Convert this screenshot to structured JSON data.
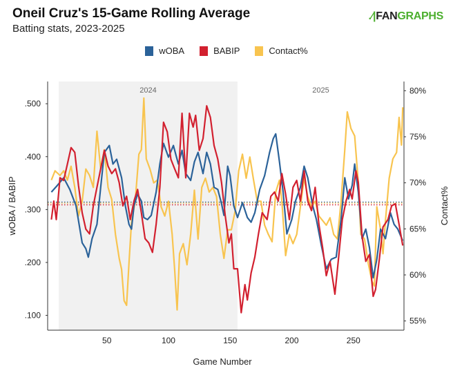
{
  "header": {
    "title": "Oneil Cruz's 15-Game Rolling Average",
    "subtitle": "Batting stats, 2023-2025",
    "logo_text_dark": "FAN",
    "logo_text_green": "GRAPHS"
  },
  "chart_data": {
    "type": "line",
    "title": "Oneil Cruz's 15-Game Rolling Average",
    "subtitle": "Batting stats, 2023-2025",
    "xlabel": "Game Number",
    "ylabel_left": "wOBA / BABIP",
    "ylabel_right": "Contact%",
    "xlim": [
      2,
      291
    ],
    "ylim_left": [
      0.072,
      0.542
    ],
    "ylim_right": [
      54,
      81
    ],
    "x_ticks": [
      "50",
      "100",
      "150",
      "200",
      "250"
    ],
    "x_tick_values": [
      50,
      100,
      150,
      200,
      250
    ],
    "y_left_ticks": [
      ".100",
      ".200",
      ".300",
      ".400",
      ".500"
    ],
    "y_left_tick_values": [
      0.1,
      0.2,
      0.3,
      0.4,
      0.5
    ],
    "y_right_ticks": [
      "55%",
      "60%",
      "65%",
      "70%",
      "75%",
      "80%"
    ],
    "y_right_tick_values": [
      55,
      60,
      65,
      70,
      75,
      80
    ],
    "legend_position": "top-center",
    "grid": false,
    "season_bands": [
      {
        "label": "2024",
        "start": 11,
        "end": 156,
        "shaded": true
      },
      {
        "label": "2025",
        "start": 156,
        "end": 291,
        "shaded": false
      }
    ],
    "series": [
      {
        "name": "wOBA",
        "axis": "left",
        "color": "#2b6299",
        "mean": 0.314,
        "points": [
          [
            5,
            0.333
          ],
          [
            10,
            0.346
          ],
          [
            15,
            0.36
          ],
          [
            20,
            0.338
          ],
          [
            25,
            0.307
          ],
          [
            30,
            0.237
          ],
          [
            33,
            0.226
          ],
          [
            35,
            0.21
          ],
          [
            38,
            0.245
          ],
          [
            42,
            0.272
          ],
          [
            45,
            0.342
          ],
          [
            48,
            0.408
          ],
          [
            52,
            0.421
          ],
          [
            55,
            0.386
          ],
          [
            58,
            0.395
          ],
          [
            62,
            0.36
          ],
          [
            65,
            0.307
          ],
          [
            68,
            0.272
          ],
          [
            70,
            0.263
          ],
          [
            72,
            0.307
          ],
          [
            75,
            0.329
          ],
          [
            78,
            0.316
          ],
          [
            80,
            0.285
          ],
          [
            83,
            0.281
          ],
          [
            86,
            0.289
          ],
          [
            90,
            0.333
          ],
          [
            93,
            0.386
          ],
          [
            96,
            0.425
          ],
          [
            100,
            0.399
          ],
          [
            104,
            0.421
          ],
          [
            108,
            0.386
          ],
          [
            111,
            0.412
          ],
          [
            114,
            0.368
          ],
          [
            118,
            0.355
          ],
          [
            121,
            0.39
          ],
          [
            124,
            0.408
          ],
          [
            128,
            0.368
          ],
          [
            131,
            0.408
          ],
          [
            134,
            0.386
          ],
          [
            137,
            0.342
          ],
          [
            140,
            0.338
          ],
          [
            143,
            0.311
          ],
          [
            145,
            0.289
          ],
          [
            148,
            0.382
          ],
          [
            150,
            0.364
          ],
          [
            153,
            0.307
          ],
          [
            156,
            0.285
          ],
          [
            160,
            0.313
          ],
          [
            164,
            0.285
          ],
          [
            167,
            0.276
          ],
          [
            170,
            0.294
          ],
          [
            174,
            0.338
          ],
          [
            178,
            0.364
          ],
          [
            182,
            0.408
          ],
          [
            185,
            0.434
          ],
          [
            187,
            0.443
          ],
          [
            190,
            0.39
          ],
          [
            193,
            0.333
          ],
          [
            196,
            0.254
          ],
          [
            200,
            0.281
          ],
          [
            203,
            0.316
          ],
          [
            207,
            0.342
          ],
          [
            210,
            0.382
          ],
          [
            213,
            0.36
          ],
          [
            217,
            0.307
          ],
          [
            220,
            0.281
          ],
          [
            224,
            0.232
          ],
          [
            228,
            0.188
          ],
          [
            232,
            0.206
          ],
          [
            236,
            0.21
          ],
          [
            240,
            0.281
          ],
          [
            243,
            0.36
          ],
          [
            246,
            0.32
          ],
          [
            249,
            0.346
          ],
          [
            251,
            0.386
          ],
          [
            254,
            0.333
          ],
          [
            257,
            0.245
          ],
          [
            260,
            0.263
          ],
          [
            263,
            0.228
          ],
          [
            266,
            0.171
          ],
          [
            269,
            0.206
          ],
          [
            272,
            0.263
          ],
          [
            276,
            0.245
          ],
          [
            280,
            0.294
          ],
          [
            283,
            0.272
          ],
          [
            286,
            0.263
          ],
          [
            290,
            0.241
          ]
        ]
      },
      {
        "name": "BABIP",
        "axis": "left",
        "color": "#d2202f",
        "mean": 0.309,
        "points": [
          [
            5,
            0.281
          ],
          [
            7,
            0.316
          ],
          [
            9,
            0.281
          ],
          [
            12,
            0.36
          ],
          [
            15,
            0.355
          ],
          [
            18,
            0.386
          ],
          [
            21,
            0.417
          ],
          [
            24,
            0.408
          ],
          [
            27,
            0.346
          ],
          [
            30,
            0.294
          ],
          [
            33,
            0.263
          ],
          [
            36,
            0.254
          ],
          [
            39,
            0.307
          ],
          [
            42,
            0.342
          ],
          [
            45,
            0.377
          ],
          [
            48,
            0.412
          ],
          [
            51,
            0.382
          ],
          [
            54,
            0.368
          ],
          [
            57,
            0.377
          ],
          [
            60,
            0.351
          ],
          [
            63,
            0.307
          ],
          [
            66,
            0.325
          ],
          [
            69,
            0.281
          ],
          [
            72,
            0.316
          ],
          [
            75,
            0.338
          ],
          [
            78,
            0.294
          ],
          [
            81,
            0.245
          ],
          [
            84,
            0.237
          ],
          [
            87,
            0.219
          ],
          [
            90,
            0.272
          ],
          [
            93,
            0.342
          ],
          [
            96,
            0.465
          ],
          [
            99,
            0.447
          ],
          [
            102,
            0.395
          ],
          [
            105,
            0.377
          ],
          [
            108,
            0.36
          ],
          [
            111,
            0.482
          ],
          [
            114,
            0.36
          ],
          [
            117,
            0.482
          ],
          [
            120,
            0.456
          ],
          [
            122,
            0.478
          ],
          [
            125,
            0.412
          ],
          [
            128,
            0.434
          ],
          [
            131,
            0.496
          ],
          [
            134,
            0.474
          ],
          [
            137,
            0.421
          ],
          [
            140,
            0.395
          ],
          [
            143,
            0.351
          ],
          [
            146,
            0.289
          ],
          [
            149,
            0.237
          ],
          [
            151,
            0.254
          ],
          [
            153,
            0.188
          ],
          [
            156,
            0.188
          ],
          [
            159,
            0.105
          ],
          [
            162,
            0.158
          ],
          [
            164,
            0.129
          ],
          [
            167,
            0.18
          ],
          [
            170,
            0.21
          ],
          [
            173,
            0.254
          ],
          [
            176,
            0.294
          ],
          [
            180,
            0.281
          ],
          [
            183,
            0.325
          ],
          [
            186,
            0.333
          ],
          [
            189,
            0.316
          ],
          [
            192,
            0.368
          ],
          [
            195,
            0.329
          ],
          [
            198,
            0.281
          ],
          [
            201,
            0.342
          ],
          [
            204,
            0.355
          ],
          [
            207,
            0.316
          ],
          [
            210,
            0.373
          ],
          [
            213,
            0.316
          ],
          [
            216,
            0.298
          ],
          [
            219,
            0.342
          ],
          [
            222,
            0.272
          ],
          [
            225,
            0.228
          ],
          [
            228,
            0.175
          ],
          [
            231,
            0.202
          ],
          [
            235,
            0.14
          ],
          [
            238,
            0.21
          ],
          [
            241,
            0.281
          ],
          [
            244,
            0.316
          ],
          [
            247,
            0.338
          ],
          [
            249,
            0.32
          ],
          [
            252,
            0.373
          ],
          [
            254,
            0.351
          ],
          [
            257,
            0.25
          ],
          [
            260,
            0.202
          ],
          [
            263,
            0.215
          ],
          [
            266,
            0.136
          ],
          [
            268,
            0.149
          ],
          [
            271,
            0.206
          ],
          [
            274,
            0.267
          ],
          [
            278,
            0.281
          ],
          [
            281,
            0.307
          ],
          [
            284,
            0.311
          ],
          [
            287,
            0.272
          ],
          [
            290,
            0.232
          ]
        ]
      },
      {
        "name": "Contact%",
        "axis": "right",
        "color": "#f8c44f",
        "mean": 67.8,
        "points": [
          [
            5,
            70.3
          ],
          [
            8,
            71.3
          ],
          [
            12,
            70.8
          ],
          [
            15,
            71.3
          ],
          [
            18,
            70.3
          ],
          [
            21,
            71.8
          ],
          [
            24,
            69.5
          ],
          [
            27,
            66.4
          ],
          [
            30,
            68.0
          ],
          [
            33,
            71.5
          ],
          [
            36,
            70.8
          ],
          [
            39,
            69.5
          ],
          [
            42,
            75.6
          ],
          [
            45,
            71.5
          ],
          [
            48,
            73.6
          ],
          [
            51,
            69.5
          ],
          [
            54,
            68.2
          ],
          [
            57,
            64.4
          ],
          [
            60,
            61.8
          ],
          [
            62,
            60.6
          ],
          [
            64,
            57.2
          ],
          [
            66,
            56.7
          ],
          [
            68,
            61.3
          ],
          [
            70,
            65.7
          ],
          [
            73,
            68.0
          ],
          [
            76,
            73.1
          ],
          [
            78,
            73.6
          ],
          [
            80,
            79.2
          ],
          [
            82,
            72.6
          ],
          [
            85,
            71.5
          ],
          [
            88,
            70.0
          ],
          [
            91,
            70.3
          ],
          [
            94,
            67.4
          ],
          [
            97,
            66.4
          ],
          [
            100,
            68.0
          ],
          [
            103,
            64.4
          ],
          [
            105,
            60.6
          ],
          [
            107,
            56.2
          ],
          [
            109,
            62.3
          ],
          [
            112,
            63.4
          ],
          [
            115,
            61.1
          ],
          [
            118,
            64.4
          ],
          [
            121,
            69.2
          ],
          [
            124,
            63.9
          ],
          [
            127,
            69.5
          ],
          [
            130,
            70.5
          ],
          [
            133,
            69.0
          ],
          [
            136,
            69.5
          ],
          [
            139,
            68.5
          ],
          [
            142,
            64.4
          ],
          [
            145,
            61.8
          ],
          [
            148,
            64.9
          ],
          [
            151,
            64.9
          ],
          [
            154,
            66.9
          ],
          [
            157,
            71.3
          ],
          [
            160,
            73.1
          ],
          [
            163,
            70.5
          ],
          [
            166,
            72.8
          ],
          [
            169,
            70.3
          ],
          [
            172,
            68.0
          ],
          [
            175,
            68.0
          ],
          [
            178,
            65.4
          ],
          [
            181,
            64.4
          ],
          [
            184,
            63.6
          ],
          [
            187,
            69.0
          ],
          [
            190,
            70.3
          ],
          [
            192,
            68.0
          ],
          [
            195,
            62.1
          ],
          [
            198,
            64.4
          ],
          [
            201,
            63.4
          ],
          [
            204,
            64.4
          ],
          [
            207,
            67.4
          ],
          [
            210,
            70.5
          ],
          [
            213,
            68.5
          ],
          [
            216,
            67.4
          ],
          [
            219,
            68.0
          ],
          [
            222,
            66.4
          ],
          [
            225,
            65.9
          ],
          [
            228,
            65.4
          ],
          [
            231,
            66.2
          ],
          [
            234,
            64.4
          ],
          [
            237,
            63.9
          ],
          [
            240,
            68.0
          ],
          [
            243,
            73.6
          ],
          [
            245,
            77.7
          ],
          [
            248,
            75.9
          ],
          [
            251,
            75.1
          ],
          [
            254,
            70.0
          ],
          [
            256,
            64.4
          ],
          [
            259,
            63.9
          ],
          [
            262,
            61.3
          ],
          [
            265,
            59.3
          ],
          [
            267,
            58.8
          ],
          [
            269,
            67.4
          ],
          [
            272,
            64.9
          ],
          [
            274,
            62.3
          ],
          [
            276,
            65.9
          ],
          [
            279,
            70.5
          ],
          [
            282,
            72.6
          ],
          [
            285,
            73.3
          ],
          [
            287,
            77.1
          ],
          [
            289,
            74.1
          ],
          [
            290,
            78.2
          ]
        ]
      }
    ]
  }
}
